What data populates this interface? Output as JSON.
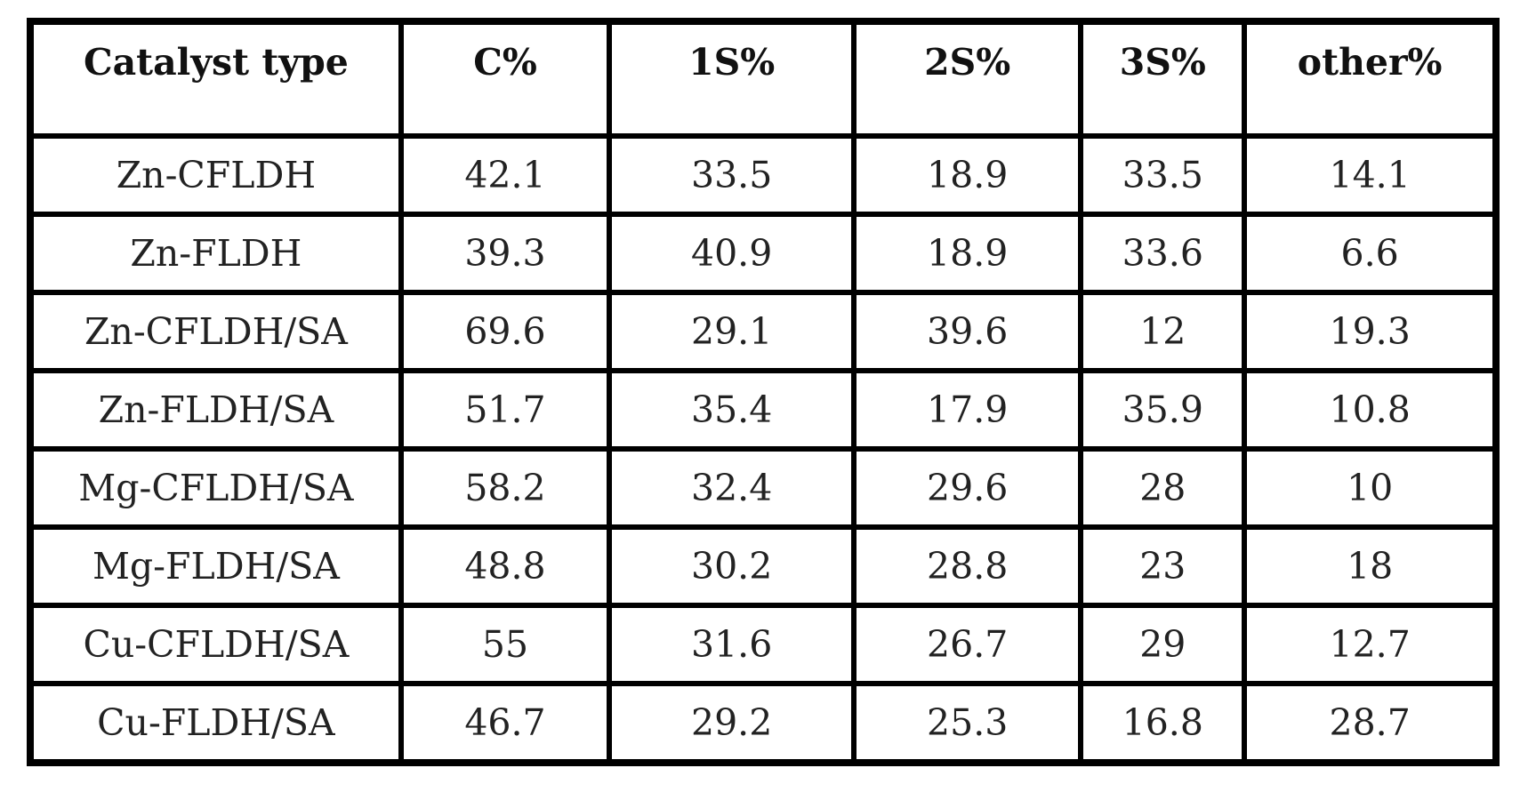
{
  "table": {
    "headers": [
      "Catalyst type",
      "C%",
      "1S%",
      "2S%",
      "3S%",
      "other%"
    ],
    "rows": [
      [
        "Zn-CFLDH",
        "42.1",
        "33.5",
        "18.9",
        "33.5",
        "14.1"
      ],
      [
        "Zn-FLDH",
        "39.3",
        "40.9",
        "18.9",
        "33.6",
        "6.6"
      ],
      [
        "Zn-CFLDH/SA",
        "69.6",
        "29.1",
        "39.6",
        "12",
        "19.3"
      ],
      [
        "Zn-FLDH/SA",
        "51.7",
        "35.4",
        "17.9",
        "35.9",
        "10.8"
      ],
      [
        "Mg-CFLDH/SA",
        "58.2",
        "32.4",
        "29.6",
        "28",
        "10"
      ],
      [
        "Mg-FLDH/SA",
        "48.8",
        "30.2",
        "28.8",
        "23",
        "18"
      ],
      [
        "Cu-CFLDH/SA",
        "55",
        "31.6",
        "26.7",
        "29",
        "12.7"
      ],
      [
        "Cu-FLDH/SA",
        "46.7",
        "29.2",
        "25.3",
        "16.8",
        "28.7"
      ]
    ]
  }
}
